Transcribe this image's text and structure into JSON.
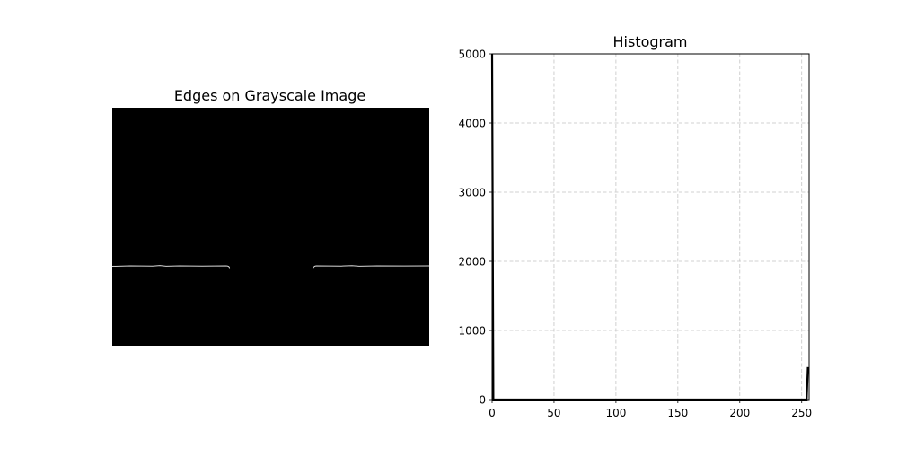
{
  "chart_data": [
    {
      "type": "image",
      "title": "Edges on Grayscale Image",
      "background_color": "#000000",
      "edge_color": "#d8d8d8",
      "axes_visible": false
    },
    {
      "type": "line",
      "title": "Histogram",
      "xlabel": "",
      "ylabel": "",
      "xlim": [
        0,
        256
      ],
      "ylim": [
        0,
        5000
      ],
      "xticks": [
        0,
        50,
        100,
        150,
        200,
        250
      ],
      "yticks": [
        0,
        1000,
        2000,
        3000,
        4000,
        5000
      ],
      "grid": true,
      "line_color": "#000000",
      "x": [
        0,
        1,
        2,
        3,
        10,
        50,
        100,
        150,
        200,
        250,
        252,
        253,
        254,
        255
      ],
      "y": [
        5000,
        0,
        0,
        0,
        0,
        0,
        0,
        0,
        0,
        0,
        0,
        0,
        0,
        470
      ]
    }
  ]
}
